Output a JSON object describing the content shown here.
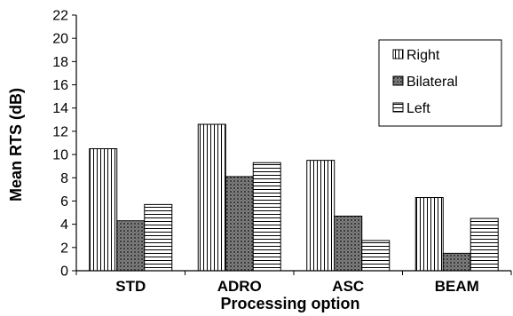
{
  "chart_data": {
    "type": "bar",
    "categories": [
      "STD",
      "ADRO",
      "ASC",
      "BEAM"
    ],
    "series": [
      {
        "name": "Right",
        "values": [
          10.5,
          12.6,
          9.5,
          6.3
        ],
        "pattern": "vertical-lines"
      },
      {
        "name": "Bilateral",
        "values": [
          4.3,
          8.1,
          4.7,
          1.5
        ],
        "pattern": "crosshatch"
      },
      {
        "name": "Left",
        "values": [
          5.7,
          9.3,
          2.6,
          4.5
        ],
        "pattern": "horizontal-lines"
      }
    ],
    "xlabel": "Processing option",
    "ylabel": "Mean RTS (dB)",
    "ylim": [
      0,
      22
    ],
    "yticks": [
      "0",
      "2",
      "4",
      "6",
      "8",
      "10",
      "12",
      "14",
      "16",
      "18",
      "20",
      "22"
    ],
    "legend_position": "top-right",
    "grid": false,
    "colors": {
      "bar_fill": "#ffffff",
      "stroke": "#000000"
    }
  }
}
